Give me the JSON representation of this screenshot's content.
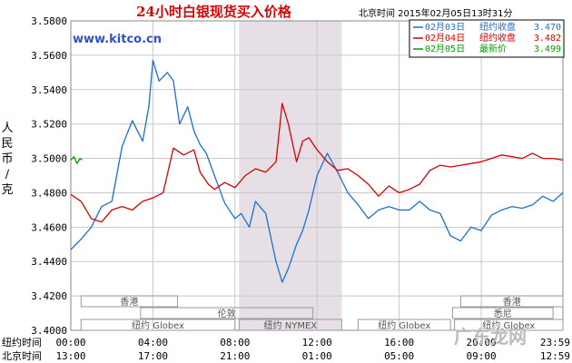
{
  "chart_data": {
    "type": "line",
    "title": "24小时白银现货买入价格",
    "subtitle": "北京时间  2015年02月05日13时31分",
    "brand": "www.kitco.cn",
    "ylabel": "人民币/克",
    "ylim": [
      3.4,
      3.58
    ],
    "yticks": [
      "3.4000",
      "3.4200",
      "3.4400",
      "3.4600",
      "3.4800",
      "3.5000",
      "3.5200",
      "3.5400",
      "3.5600",
      "3.5800"
    ],
    "x_rows": [
      {
        "label": "纽约时间",
        "ticks": [
          "00:00",
          "04:00",
          "08:00",
          "12:00",
          "16:00",
          "20:00",
          "23:59"
        ]
      },
      {
        "label": "北京时间",
        "ticks": [
          "13:00",
          "17:00",
          "21:00",
          "01:00",
          "05:00",
          "09:00",
          "12:59"
        ]
      }
    ],
    "markets": [
      "香港",
      "伦敦",
      "纽约 Globex",
      "纽约 NYMEX",
      "纽约 Globex",
      "悉尼",
      "香港",
      "纽约 Globex"
    ],
    "watermark": "广东龙网",
    "colors": {
      "series1": "#1a6fd6",
      "series2": "#d80000",
      "series3": "#00a000",
      "shade": "#e6e0e6",
      "grid": "#c8c8c8",
      "border": "#888888"
    },
    "series": [
      {
        "name": "02月03日",
        "legend_label": "纽约收盘",
        "legend_value": "3.470",
        "color": "#1a6fd6",
        "x": [
          0,
          0.5,
          1,
          1.5,
          2,
          2.5,
          3,
          3.5,
          3.8,
          4,
          4.3,
          4.7,
          5,
          5.3,
          5.7,
          6,
          6.3,
          6.6,
          7,
          7.5,
          8,
          8.3,
          8.7,
          9,
          9.5,
          10,
          10.3,
          10.6,
          11,
          11.3,
          11.6,
          12,
          12.5,
          13,
          13.5,
          14,
          14.5,
          15,
          15.5,
          16,
          16.5,
          17,
          17.5,
          18,
          18.5,
          19,
          19.5,
          20,
          20.5,
          21,
          21.5,
          22,
          22.5,
          23,
          23.5,
          23.98
        ],
        "y": [
          3.447,
          3.453,
          3.46,
          3.472,
          3.475,
          3.507,
          3.522,
          3.51,
          3.53,
          3.557,
          3.545,
          3.55,
          3.545,
          3.52,
          3.53,
          3.516,
          3.508,
          3.503,
          3.49,
          3.474,
          3.465,
          3.468,
          3.46,
          3.475,
          3.468,
          3.44,
          3.428,
          3.436,
          3.45,
          3.458,
          3.47,
          3.49,
          3.503,
          3.492,
          3.48,
          3.473,
          3.465,
          3.47,
          3.472,
          3.47,
          3.47,
          3.475,
          3.47,
          3.468,
          3.455,
          3.452,
          3.46,
          3.458,
          3.467,
          3.47,
          3.472,
          3.471,
          3.473,
          3.478,
          3.475,
          3.48
        ]
      },
      {
        "name": "02月04日",
        "legend_label": "纽约收盘",
        "legend_value": "3.482",
        "color": "#d80000",
        "x": [
          0,
          0.5,
          1,
          1.5,
          2,
          2.5,
          3,
          3.5,
          4,
          4.5,
          5,
          5.5,
          6,
          6.3,
          6.7,
          7,
          7.5,
          8,
          8.5,
          9,
          9.5,
          10,
          10.3,
          10.6,
          11,
          11.3,
          11.6,
          12,
          12.5,
          13,
          13.5,
          14,
          14.5,
          15,
          15.5,
          16,
          16.5,
          17,
          17.5,
          18,
          18.5,
          19,
          19.5,
          20,
          20.5,
          21,
          21.5,
          22,
          22.5,
          23,
          23.5,
          23.98
        ],
        "y": [
          3.479,
          3.475,
          3.465,
          3.463,
          3.47,
          3.472,
          3.47,
          3.475,
          3.477,
          3.48,
          3.506,
          3.502,
          3.505,
          3.492,
          3.485,
          3.482,
          3.486,
          3.483,
          3.49,
          3.494,
          3.492,
          3.498,
          3.532,
          3.52,
          3.498,
          3.51,
          3.512,
          3.505,
          3.498,
          3.493,
          3.494,
          3.49,
          3.485,
          3.478,
          3.484,
          3.48,
          3.482,
          3.485,
          3.493,
          3.496,
          3.495,
          3.496,
          3.497,
          3.498,
          3.5,
          3.502,
          3.501,
          3.5,
          3.503,
          3.5,
          3.5,
          3.499
        ]
      },
      {
        "name": "02月05日",
        "legend_label": "最新价",
        "legend_value": "3.499",
        "color": "#00a000",
        "x": [
          0,
          0.15,
          0.3,
          0.45,
          0.55
        ],
        "y": [
          3.499,
          3.501,
          3.497,
          3.5,
          3.499
        ]
      }
    ]
  }
}
